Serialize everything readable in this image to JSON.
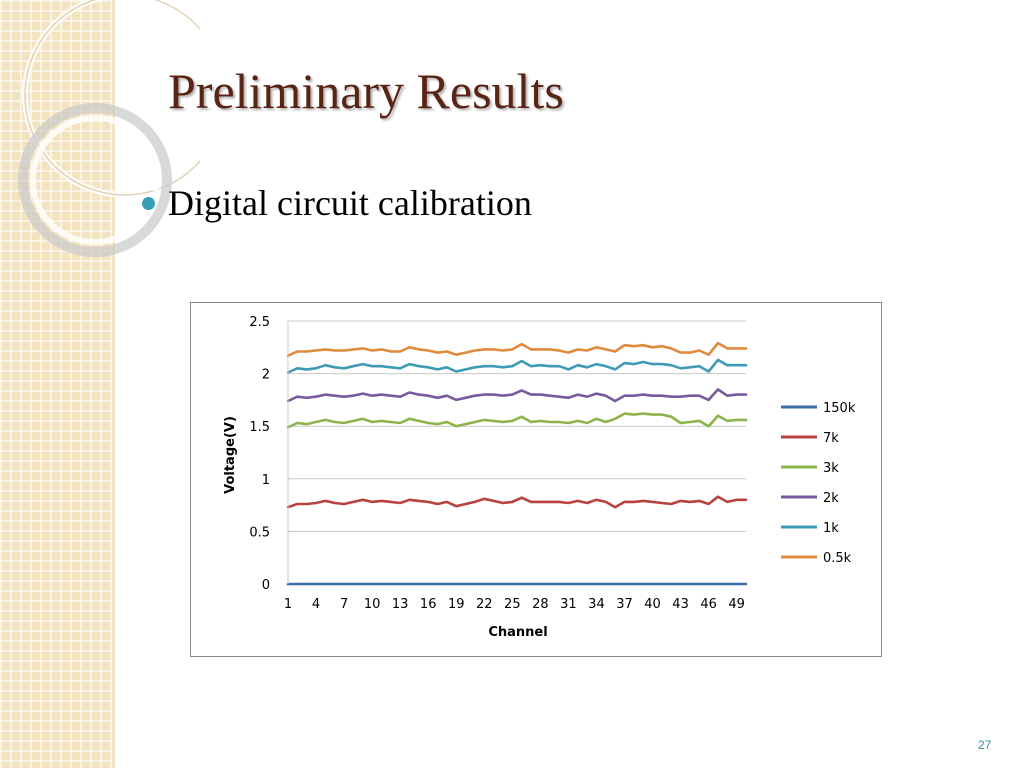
{
  "slide": {
    "title": "Preliminary Results",
    "bullet": "Digital circuit calibration",
    "page_number": "27"
  },
  "colors": {
    "title": "#5a2414",
    "bullet": "#3a9eb5",
    "page_number": "#2d8fa8"
  },
  "chart_data": {
    "type": "line",
    "title": "",
    "xlabel": "Channel",
    "ylabel": "Voltage(V)",
    "ylim": [
      0,
      2.5
    ],
    "yticks": [
      "0",
      "0.5",
      "1",
      "1.5",
      "2",
      "2.5"
    ],
    "xlim": [
      1,
      50
    ],
    "xticks": [
      "1",
      "4",
      "7",
      "10",
      "13",
      "16",
      "19",
      "22",
      "25",
      "28",
      "31",
      "34",
      "37",
      "40",
      "43",
      "46",
      "49"
    ],
    "grid": "horizontal",
    "legend": "right",
    "x": [
      1,
      2,
      3,
      4,
      5,
      6,
      7,
      8,
      9,
      10,
      11,
      12,
      13,
      14,
      15,
      16,
      17,
      18,
      19,
      20,
      21,
      22,
      23,
      24,
      25,
      26,
      27,
      28,
      29,
      30,
      31,
      32,
      33,
      34,
      35,
      36,
      37,
      38,
      39,
      40,
      41,
      42,
      43,
      44,
      45,
      46,
      47,
      48,
      49,
      50
    ],
    "series": [
      {
        "name": "150k",
        "color": "#3a6ea8",
        "values": [
          0,
          0,
          0,
          0,
          0,
          0,
          0,
          0,
          0,
          0,
          0,
          0,
          0,
          0,
          0,
          0,
          0,
          0,
          0,
          0,
          0,
          0,
          0,
          0,
          0,
          0,
          0,
          0,
          0,
          0,
          0,
          0,
          0,
          0,
          0,
          0,
          0,
          0,
          0,
          0,
          0,
          0,
          0,
          0,
          0,
          0,
          0,
          0,
          0,
          0
        ]
      },
      {
        "name": "7k",
        "color": "#b7423f",
        "values": [
          0.73,
          0.76,
          0.76,
          0.77,
          0.79,
          0.77,
          0.76,
          0.78,
          0.8,
          0.78,
          0.79,
          0.78,
          0.77,
          0.8,
          0.79,
          0.78,
          0.76,
          0.78,
          0.74,
          0.76,
          0.78,
          0.81,
          0.79,
          0.77,
          0.78,
          0.82,
          0.78,
          0.78,
          0.78,
          0.78,
          0.77,
          0.79,
          0.77,
          0.8,
          0.78,
          0.73,
          0.78,
          0.78,
          0.79,
          0.78,
          0.77,
          0.76,
          0.79,
          0.78,
          0.79,
          0.76,
          0.83,
          0.78,
          0.8,
          0.8
        ]
      },
      {
        "name": "3k",
        "color": "#8db44a",
        "values": [
          1.49,
          1.53,
          1.52,
          1.54,
          1.56,
          1.54,
          1.53,
          1.55,
          1.57,
          1.54,
          1.55,
          1.54,
          1.53,
          1.57,
          1.55,
          1.53,
          1.52,
          1.54,
          1.5,
          1.52,
          1.54,
          1.56,
          1.55,
          1.54,
          1.55,
          1.59,
          1.54,
          1.55,
          1.54,
          1.54,
          1.53,
          1.55,
          1.53,
          1.57,
          1.54,
          1.57,
          1.62,
          1.61,
          1.62,
          1.61,
          1.61,
          1.59,
          1.53,
          1.54,
          1.55,
          1.5,
          1.6,
          1.55,
          1.56,
          1.56
        ]
      },
      {
        "name": "2k",
        "color": "#7a5a9e",
        "values": [
          1.74,
          1.78,
          1.77,
          1.78,
          1.8,
          1.79,
          1.78,
          1.79,
          1.81,
          1.79,
          1.8,
          1.79,
          1.78,
          1.82,
          1.8,
          1.79,
          1.77,
          1.79,
          1.75,
          1.77,
          1.79,
          1.8,
          1.8,
          1.79,
          1.8,
          1.84,
          1.8,
          1.8,
          1.79,
          1.78,
          1.77,
          1.8,
          1.78,
          1.81,
          1.79,
          1.74,
          1.79,
          1.79,
          1.8,
          1.79,
          1.79,
          1.78,
          1.78,
          1.79,
          1.79,
          1.75,
          1.85,
          1.79,
          1.8,
          1.8
        ]
      },
      {
        "name": "1k",
        "color": "#3f9bb5",
        "values": [
          2.01,
          2.05,
          2.04,
          2.05,
          2.08,
          2.06,
          2.05,
          2.07,
          2.09,
          2.07,
          2.07,
          2.06,
          2.05,
          2.09,
          2.07,
          2.06,
          2.04,
          2.06,
          2.02,
          2.04,
          2.06,
          2.07,
          2.07,
          2.06,
          2.07,
          2.12,
          2.07,
          2.08,
          2.07,
          2.07,
          2.04,
          2.08,
          2.06,
          2.09,
          2.07,
          2.04,
          2.1,
          2.09,
          2.11,
          2.09,
          2.09,
          2.08,
          2.05,
          2.06,
          2.07,
          2.02,
          2.13,
          2.08,
          2.08,
          2.08
        ]
      },
      {
        "name": "0.5k",
        "color": "#e08a3c",
        "values": [
          2.17,
          2.21,
          2.21,
          2.22,
          2.23,
          2.22,
          2.22,
          2.23,
          2.24,
          2.22,
          2.23,
          2.21,
          2.21,
          2.25,
          2.23,
          2.22,
          2.2,
          2.21,
          2.18,
          2.2,
          2.22,
          2.23,
          2.23,
          2.22,
          2.23,
          2.28,
          2.23,
          2.23,
          2.23,
          2.22,
          2.2,
          2.23,
          2.22,
          2.25,
          2.23,
          2.21,
          2.27,
          2.26,
          2.27,
          2.25,
          2.26,
          2.24,
          2.2,
          2.2,
          2.22,
          2.18,
          2.29,
          2.24,
          2.24,
          2.24
        ]
      }
    ]
  }
}
